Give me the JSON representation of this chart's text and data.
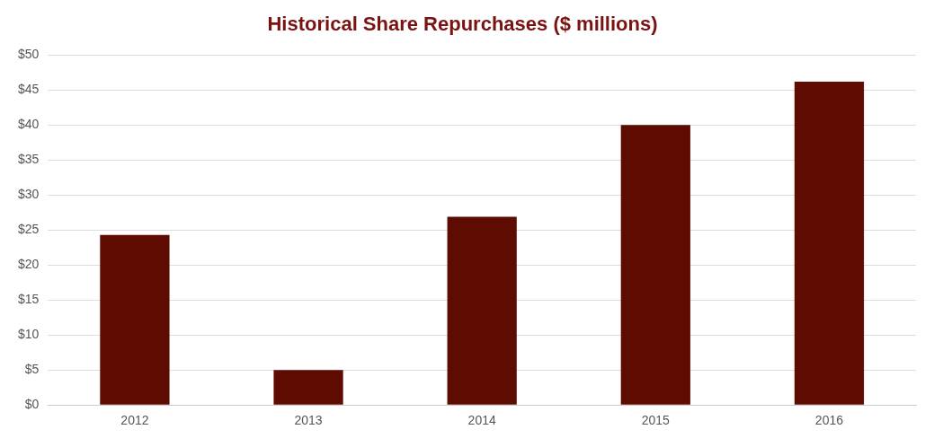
{
  "chart_data": {
    "type": "bar",
    "title": "Historical Share Repurchases ($ millions)",
    "categories": [
      "2012",
      "2013",
      "2014",
      "2015",
      "2016"
    ],
    "values": [
      24.3,
      5,
      26.9,
      40,
      46.2
    ],
    "color": "#5e0b02",
    "ylim": [
      0,
      50
    ],
    "yticks": [
      {
        "value": 0,
        "label": "$0"
      },
      {
        "value": 5,
        "label": "$5"
      },
      {
        "value": 10,
        "label": "$10"
      },
      {
        "value": 15,
        "label": "$15"
      },
      {
        "value": 20,
        "label": "$20"
      },
      {
        "value": 25,
        "label": "$25"
      },
      {
        "value": 30,
        "label": "$30"
      },
      {
        "value": 35,
        "label": "$35"
      },
      {
        "value": 40,
        "label": "$40"
      },
      {
        "value": 45,
        "label": "$45"
      },
      {
        "value": 50,
        "label": "$50"
      }
    ],
    "grid": "y",
    "legend": false
  }
}
